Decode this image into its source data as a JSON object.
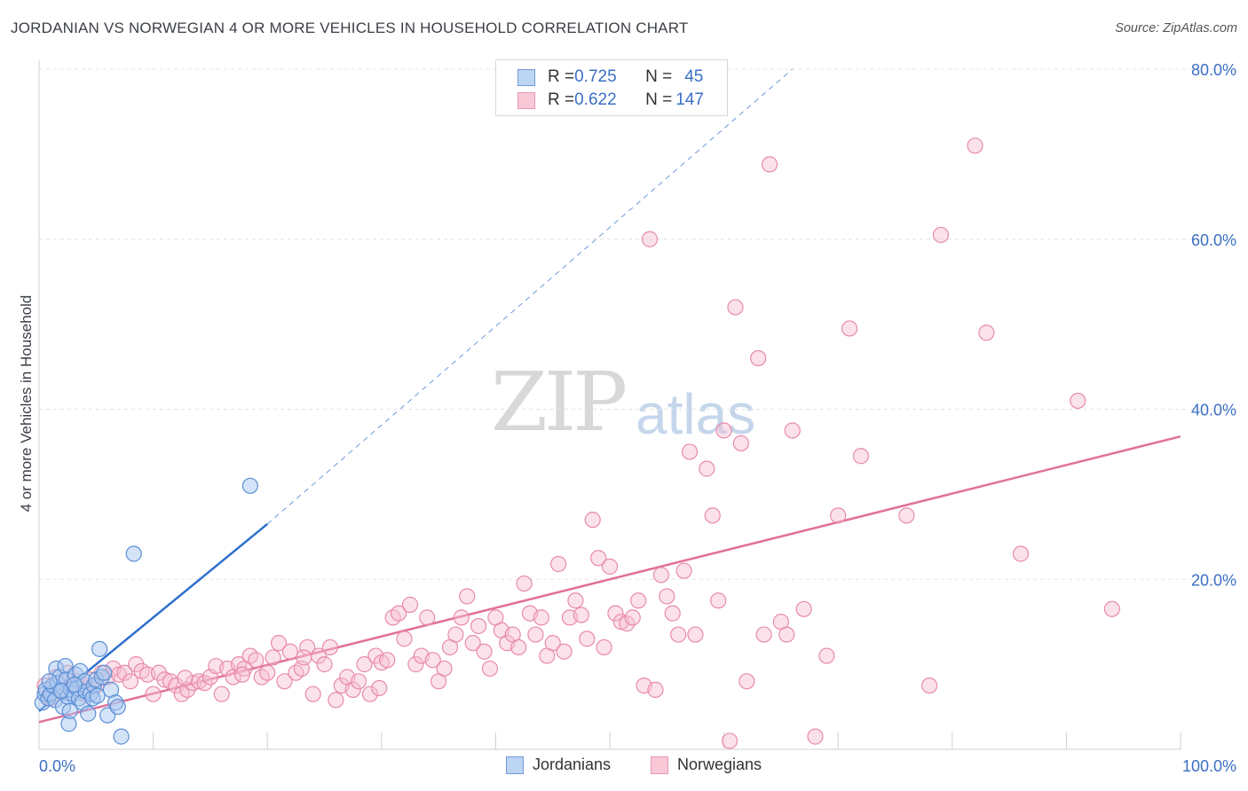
{
  "title": "JORDANIAN VS NORWEGIAN 4 OR MORE VEHICLES IN HOUSEHOLD CORRELATION CHART",
  "source": "Source: ZipAtlas.com",
  "watermark": {
    "zip": "ZIP",
    "atlas": "atlas"
  },
  "legend_top": {
    "rows": [
      {
        "r_label": "R = ",
        "r_value": "0.725",
        "n_label": "N = ",
        "n_value": "45"
      },
      {
        "r_label": "R = ",
        "r_value": "0.622",
        "n_label": "N = ",
        "n_value": "147"
      }
    ]
  },
  "legend_bottom": [
    "Jordanians",
    "Norwegians"
  ],
  "colors": {
    "jordanian_fill": "#a9c8f0",
    "jordanian_stroke": "#5b8fd6",
    "jordanian_line": "#2f6fce",
    "norwegian_fill": "#f7bfd0",
    "norwegian_stroke": "#e88aa8",
    "norwegian_line": "#e0709a",
    "tick_label": "#3a6fc4",
    "grid": "#e4e4e4"
  },
  "chart_data": {
    "type": "scatter",
    "title": "JORDANIAN VS NORWEGIAN 4 OR MORE VEHICLES IN HOUSEHOLD CORRELATION CHART",
    "xlabel": "",
    "ylabel": "4 or more Vehicles in Household",
    "xlim": [
      0,
      100
    ],
    "ylim": [
      0,
      80
    ],
    "x_tick_labels": [
      "0.0%",
      "100.0%"
    ],
    "y_tick_labels": [
      "20.0%",
      "40.0%",
      "60.0%",
      "80.0%"
    ],
    "y_ticks": [
      20,
      40,
      60,
      80
    ],
    "grid": true,
    "legend_position": "top-center",
    "series": [
      {
        "name": "Jordanians",
        "trend": {
          "x": [
            0,
            20
          ],
          "y": [
            4.5,
            26.5
          ],
          "extended_to": [
            66,
            80
          ]
        },
        "points": [
          [
            0.3,
            5.5
          ],
          [
            0.5,
            6.5
          ],
          [
            0.6,
            7.0
          ],
          [
            0.8,
            6.0
          ],
          [
            1.0,
            6.5
          ],
          [
            1.2,
            7.5
          ],
          [
            1.4,
            5.8
          ],
          [
            1.5,
            9.5
          ],
          [
            1.6,
            7.8
          ],
          [
            1.8,
            8.5
          ],
          [
            2.0,
            6.8
          ],
          [
            2.1,
            5.0
          ],
          [
            2.3,
            9.8
          ],
          [
            2.4,
            8.2
          ],
          [
            2.5,
            6.2
          ],
          [
            2.6,
            3.0
          ],
          [
            2.7,
            4.5
          ],
          [
            2.8,
            7.0
          ],
          [
            3.0,
            6.5
          ],
          [
            3.2,
            8.8
          ],
          [
            3.3,
            7.2
          ],
          [
            3.5,
            6.0
          ],
          [
            3.6,
            9.2
          ],
          [
            3.8,
            5.5
          ],
          [
            4.0,
            8.0
          ],
          [
            4.1,
            6.8
          ],
          [
            4.3,
            4.2
          ],
          [
            4.5,
            6.5
          ],
          [
            4.7,
            6.0
          ],
          [
            4.8,
            7.5
          ],
          [
            5.0,
            8.2
          ],
          [
            5.1,
            6.3
          ],
          [
            5.3,
            11.8
          ],
          [
            5.5,
            8.5
          ],
          [
            5.7,
            9.0
          ],
          [
            6.0,
            4.0
          ],
          [
            6.3,
            7.0
          ],
          [
            6.7,
            5.5
          ],
          [
            6.9,
            5.0
          ],
          [
            7.2,
            1.5
          ],
          [
            8.3,
            23.0
          ],
          [
            18.5,
            31.0
          ],
          [
            1.9,
            6.9
          ],
          [
            3.1,
            7.6
          ],
          [
            0.9,
            8.0
          ]
        ]
      },
      {
        "name": "Norwegians",
        "trend": {
          "x": [
            0,
            100
          ],
          "y": [
            3.2,
            36.8
          ]
        },
        "points": [
          [
            0.5,
            7.5
          ],
          [
            1.0,
            6.0
          ],
          [
            1.5,
            8.5
          ],
          [
            2.0,
            7.0
          ],
          [
            2.5,
            9.0
          ],
          [
            3.0,
            7.5
          ],
          [
            3.5,
            8.0
          ],
          [
            4.0,
            6.5
          ],
          [
            4.5,
            8.2
          ],
          [
            5.0,
            7.5
          ],
          [
            5.5,
            9.0
          ],
          [
            6.0,
            8.5
          ],
          [
            6.5,
            9.5
          ],
          [
            7.0,
            8.8
          ],
          [
            7.5,
            9.0
          ],
          [
            8.0,
            8.0
          ],
          [
            8.5,
            10.0
          ],
          [
            9.0,
            9.2
          ],
          [
            9.5,
            8.8
          ],
          [
            10.0,
            6.5
          ],
          [
            10.5,
            9.0
          ],
          [
            11.0,
            8.2
          ],
          [
            11.5,
            8.0
          ],
          [
            12.0,
            7.5
          ],
          [
            12.5,
            6.5
          ],
          [
            13.0,
            7.0
          ],
          [
            13.5,
            7.8
          ],
          [
            14.0,
            8.0
          ],
          [
            14.5,
            7.8
          ],
          [
            15.0,
            8.5
          ],
          [
            15.5,
            9.8
          ],
          [
            16.0,
            6.5
          ],
          [
            16.5,
            9.5
          ],
          [
            17.0,
            8.5
          ],
          [
            17.5,
            10.0
          ],
          [
            18.0,
            9.5
          ],
          [
            18.5,
            11.0
          ],
          [
            19.0,
            10.5
          ],
          [
            19.5,
            8.5
          ],
          [
            20.0,
            9.0
          ],
          [
            20.5,
            10.8
          ],
          [
            21.0,
            12.5
          ],
          [
            21.5,
            8.0
          ],
          [
            22.0,
            11.5
          ],
          [
            22.5,
            9.0
          ],
          [
            23.0,
            9.5
          ],
          [
            23.5,
            12.0
          ],
          [
            24.0,
            6.5
          ],
          [
            24.5,
            11.0
          ],
          [
            25.0,
            10.0
          ],
          [
            25.5,
            12.0
          ],
          [
            26.0,
            5.8
          ],
          [
            26.5,
            7.5
          ],
          [
            27.0,
            8.5
          ],
          [
            27.5,
            7.0
          ],
          [
            28.0,
            8.0
          ],
          [
            28.5,
            10.0
          ],
          [
            29.0,
            6.5
          ],
          [
            29.5,
            11.0
          ],
          [
            30.0,
            10.2
          ],
          [
            30.5,
            10.5
          ],
          [
            31.0,
            15.5
          ],
          [
            31.5,
            16.0
          ],
          [
            32.0,
            13.0
          ],
          [
            32.5,
            17.0
          ],
          [
            33.0,
            10.0
          ],
          [
            33.5,
            11.0
          ],
          [
            34.0,
            15.5
          ],
          [
            34.5,
            10.5
          ],
          [
            35.0,
            8.0
          ],
          [
            35.5,
            9.5
          ],
          [
            36.0,
            12.0
          ],
          [
            36.5,
            13.5
          ],
          [
            37.0,
            15.5
          ],
          [
            37.5,
            18.0
          ],
          [
            38.0,
            12.5
          ],
          [
            38.5,
            14.5
          ],
          [
            39.0,
            11.5
          ],
          [
            39.5,
            9.5
          ],
          [
            40.0,
            15.5
          ],
          [
            40.5,
            14.0
          ],
          [
            41.0,
            12.5
          ],
          [
            41.5,
            13.5
          ],
          [
            42.0,
            12.0
          ],
          [
            42.5,
            19.5
          ],
          [
            43.0,
            16.0
          ],
          [
            43.5,
            13.5
          ],
          [
            44.0,
            15.5
          ],
          [
            44.5,
            11.0
          ],
          [
            45.0,
            12.5
          ],
          [
            45.5,
            21.8
          ],
          [
            46.0,
            11.5
          ],
          [
            46.5,
            15.5
          ],
          [
            47.0,
            17.5
          ],
          [
            47.5,
            15.8
          ],
          [
            48.0,
            13.0
          ],
          [
            48.5,
            27.0
          ],
          [
            49.0,
            22.5
          ],
          [
            49.5,
            12.0
          ],
          [
            50.0,
            21.5
          ],
          [
            50.5,
            16.0
          ],
          [
            51.0,
            15.0
          ],
          [
            51.5,
            14.8
          ],
          [
            52.0,
            15.5
          ],
          [
            52.5,
            17.5
          ],
          [
            53.0,
            7.5
          ],
          [
            53.5,
            60.0
          ],
          [
            54.0,
            7.0
          ],
          [
            54.5,
            20.5
          ],
          [
            55.0,
            18.0
          ],
          [
            55.5,
            16.0
          ],
          [
            56.0,
            13.5
          ],
          [
            56.5,
            21.0
          ],
          [
            57.0,
            35.0
          ],
          [
            57.5,
            13.5
          ],
          [
            58.5,
            33.0
          ],
          [
            59.0,
            27.5
          ],
          [
            59.5,
            17.5
          ],
          [
            60.0,
            37.5
          ],
          [
            60.5,
            1.0
          ],
          [
            61.0,
            52.0
          ],
          [
            61.5,
            36.0
          ],
          [
            62.0,
            8.0
          ],
          [
            63.0,
            46.0
          ],
          [
            63.5,
            13.5
          ],
          [
            64.0,
            68.8
          ],
          [
            65.0,
            15.0
          ],
          [
            65.5,
            13.5
          ],
          [
            66.0,
            37.5
          ],
          [
            67.0,
            16.5
          ],
          [
            68.0,
            1.5
          ],
          [
            69.0,
            11.0
          ],
          [
            70.0,
            27.5
          ],
          [
            71.0,
            49.5
          ],
          [
            72.0,
            34.5
          ],
          [
            76.0,
            27.5
          ],
          [
            78.0,
            7.5
          ],
          [
            79.0,
            60.5
          ],
          [
            82.0,
            71.0
          ],
          [
            83.0,
            49.0
          ],
          [
            86.0,
            23.0
          ],
          [
            91.0,
            41.0
          ],
          [
            94.0,
            16.5
          ],
          [
            29.8,
            7.2
          ],
          [
            23.2,
            10.8
          ],
          [
            17.8,
            8.8
          ],
          [
            12.8,
            8.4
          ]
        ]
      }
    ]
  }
}
